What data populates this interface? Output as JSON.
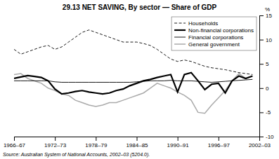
{
  "chart_data": {
    "type": "line",
    "title": "29.13  NET SAVING, By sector — Share of GDP",
    "annotations": [
      "Source:  Australian System of National Accounts, 2002–03 (5204.0)."
    ],
    "ylabel": "%",
    "x": [
      0,
      1,
      2,
      3,
      4,
      5,
      6,
      7,
      8,
      9,
      10,
      11,
      12,
      13,
      14,
      15,
      16,
      17,
      18,
      19,
      20,
      21,
      22,
      23,
      24,
      25,
      26,
      27,
      28,
      29,
      30,
      31,
      32,
      33,
      34,
      35
    ],
    "xlim": [
      0,
      36
    ],
    "xticks": [
      {
        "value": 0,
        "label": "1966–67"
      },
      {
        "value": 6,
        "label": "1972–73"
      },
      {
        "value": 12,
        "label": "1978–79"
      },
      {
        "value": 18,
        "label": "1984–85"
      },
      {
        "value": 24,
        "label": "1990–91"
      },
      {
        "value": 30,
        "label": "1996–97"
      },
      {
        "value": 36,
        "label": "2002–03"
      }
    ],
    "ylim": [
      -10,
      15
    ],
    "yticks": [
      -10,
      -5,
      0,
      5,
      10,
      15
    ],
    "grid": false,
    "legend": "upper right",
    "series": [
      {
        "name": "Households",
        "color": "#000000",
        "line_style": "dashed",
        "values": [
          8.0,
          7.0,
          7.5,
          8.0,
          8.5,
          8.8,
          8.0,
          8.5,
          9.5,
          10.5,
          11.5,
          12.0,
          11.5,
          11.0,
          10.5,
          10.0,
          9.5,
          9.5,
          9.5,
          9.2,
          8.8,
          8.0,
          7.0,
          6.0,
          5.5,
          5.8,
          5.5,
          5.0,
          4.5,
          4.2,
          4.0,
          3.8,
          3.5,
          3.2,
          3.0,
          2.8
        ]
      },
      {
        "name": "Non-financial corporations",
        "color": "#000000",
        "line_style": "solid",
        "values": [
          2.0,
          2.3,
          2.6,
          2.4,
          2.2,
          1.5,
          -0.2,
          -1.2,
          -1.0,
          -0.7,
          -0.5,
          -0.8,
          -1.0,
          -1.2,
          -1.0,
          -0.5,
          -0.2,
          0.5,
          1.0,
          1.5,
          1.8,
          2.2,
          2.5,
          2.8,
          -0.8,
          2.8,
          3.2,
          1.5,
          -0.3,
          0.8,
          1.0,
          -1.0,
          1.5,
          2.5,
          2.0,
          2.5
        ]
      },
      {
        "name": "Financial corporations",
        "color": "#000000",
        "line_style": "solid",
        "values": [
          1.5,
          1.5,
          1.5,
          1.5,
          1.5,
          1.5,
          1.3,
          1.2,
          1.2,
          1.2,
          1.2,
          1.2,
          1.2,
          1.2,
          1.2,
          1.2,
          1.2,
          1.2,
          1.3,
          1.4,
          1.5,
          1.5,
          1.5,
          1.6,
          1.5,
          1.5,
          1.5,
          1.4,
          1.3,
          1.2,
          1.3,
          1.4,
          1.5,
          1.6,
          1.7,
          1.8
        ]
      },
      {
        "name": "General government",
        "color": "#aaaaaa",
        "line_style": "solid",
        "values": [
          2.8,
          3.0,
          2.0,
          1.5,
          1.0,
          0.0,
          -0.5,
          -1.2,
          -1.5,
          -2.5,
          -3.0,
          -3.5,
          -3.8,
          -3.5,
          -3.0,
          -3.0,
          -2.5,
          -2.0,
          -1.5,
          -1.0,
          0.0,
          1.0,
          0.5,
          0.0,
          -0.8,
          -1.5,
          -2.5,
          -5.0,
          -5.2,
          -3.5,
          -2.0,
          -0.5,
          1.5,
          3.0,
          2.0,
          2.5
        ]
      }
    ]
  }
}
